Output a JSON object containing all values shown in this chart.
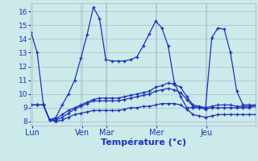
{
  "background_color": "#cceaea",
  "grid_color": "#aabbcc",
  "line_color": "#1a33bb",
  "xlabel": "Température (°c)",
  "ylim": [
    7.7,
    16.6
  ],
  "yticks": [
    8,
    9,
    10,
    11,
    12,
    13,
    14,
    15,
    16
  ],
  "day_labels": [
    "Lun",
    "Ven",
    "Mar",
    "Mer",
    "Jeu"
  ],
  "day_x": [
    0.5,
    24.5,
    36.5,
    60.5,
    84.5
  ],
  "vline_x": [
    0,
    24,
    36,
    60,
    84
  ],
  "xlim": [
    0,
    108
  ],
  "series1": {
    "x": [
      0,
      3,
      6,
      9,
      12,
      15,
      18,
      21,
      24,
      27,
      30,
      33,
      36,
      39,
      42,
      45,
      48,
      51,
      54,
      57,
      60,
      63,
      66,
      69,
      72,
      75,
      78,
      81,
      84,
      87,
      90,
      93,
      96,
      99,
      102,
      105,
      108
    ],
    "y": [
      14.5,
      13.0,
      9.2,
      8.1,
      8.3,
      9.2,
      10.0,
      11.0,
      12.6,
      14.3,
      16.3,
      15.5,
      12.5,
      12.4,
      12.4,
      12.4,
      12.5,
      12.7,
      13.5,
      14.4,
      15.3,
      14.8,
      13.5,
      10.8,
      9.8,
      9.0,
      9.0,
      9.0,
      9.0,
      14.1,
      14.8,
      14.7,
      13.0,
      10.2,
      9.2,
      9.2,
      9.2
    ]
  },
  "series2": {
    "x": [
      0,
      3,
      6,
      9,
      12,
      15,
      18,
      21,
      24,
      27,
      30,
      33,
      36,
      39,
      42,
      45,
      48,
      51,
      54,
      57,
      60,
      63,
      66,
      69,
      72,
      75,
      78,
      81,
      84,
      87,
      90,
      93,
      96,
      99,
      102,
      105,
      108
    ],
    "y": [
      9.2,
      9.2,
      9.2,
      8.1,
      8.2,
      8.5,
      8.8,
      9.0,
      9.2,
      9.4,
      9.6,
      9.7,
      9.7,
      9.7,
      9.7,
      9.8,
      9.9,
      10.0,
      10.1,
      10.2,
      10.5,
      10.6,
      10.8,
      10.7,
      10.5,
      9.8,
      9.2,
      9.1,
      9.0,
      9.1,
      9.2,
      9.2,
      9.2,
      9.1,
      9.1,
      9.1,
      9.2
    ]
  },
  "series3": {
    "x": [
      0,
      3,
      6,
      9,
      12,
      15,
      18,
      21,
      24,
      27,
      30,
      33,
      36,
      39,
      42,
      45,
      48,
      51,
      54,
      57,
      60,
      63,
      66,
      69,
      72,
      75,
      78,
      81,
      84,
      87,
      90,
      93,
      96,
      99,
      102,
      105,
      108
    ],
    "y": [
      9.2,
      9.2,
      9.2,
      8.1,
      8.1,
      8.3,
      8.6,
      8.9,
      9.1,
      9.3,
      9.5,
      9.5,
      9.5,
      9.5,
      9.5,
      9.6,
      9.7,
      9.8,
      9.9,
      10.0,
      10.2,
      10.3,
      10.4,
      10.3,
      10.1,
      9.6,
      9.1,
      9.0,
      8.9,
      9.0,
      9.0,
      9.0,
      9.0,
      9.0,
      9.0,
      9.0,
      9.1
    ]
  },
  "series4": {
    "x": [
      0,
      3,
      6,
      9,
      12,
      15,
      18,
      21,
      24,
      27,
      30,
      33,
      36,
      39,
      42,
      45,
      48,
      51,
      54,
      57,
      60,
      63,
      66,
      69,
      72,
      75,
      78,
      81,
      84,
      87,
      90,
      93,
      96,
      99,
      102,
      105,
      108
    ],
    "y": [
      9.2,
      9.2,
      9.2,
      8.1,
      8.0,
      8.1,
      8.3,
      8.5,
      8.6,
      8.7,
      8.8,
      8.8,
      8.8,
      8.8,
      8.8,
      8.9,
      9.0,
      9.0,
      9.1,
      9.1,
      9.2,
      9.3,
      9.3,
      9.3,
      9.2,
      8.9,
      8.5,
      8.4,
      8.3,
      8.4,
      8.5,
      8.5,
      8.5,
      8.5,
      8.5,
      8.5,
      8.5
    ]
  }
}
